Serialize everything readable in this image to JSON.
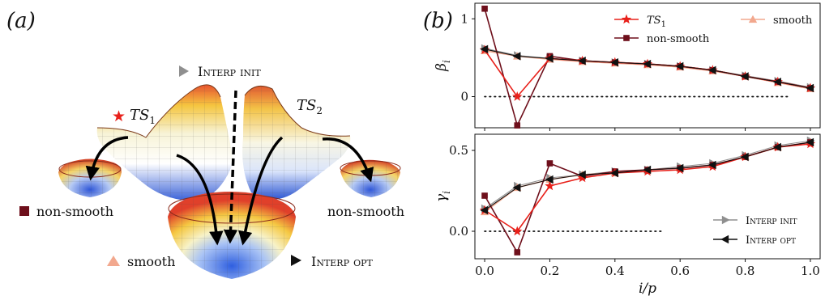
{
  "panel_a": {
    "label": "(a)",
    "ts1_label": "TS",
    "ts1_sub": "1",
    "ts2_label": "TS",
    "ts2_sub": "2",
    "interp_init_label": "Interp init",
    "interp_opt_label": "Interp opt",
    "non_smooth_left_label": "non-smooth",
    "non_smooth_right_label": "non-smooth",
    "smooth_label": "smooth"
  },
  "panel_b": {
    "label": "(b)"
  },
  "colors": {
    "ts1": "#e8201a",
    "non_smooth": "#6e0f1b",
    "smooth": "#f2a88e",
    "interp_init": "#8f8f8f",
    "interp_opt": "#111111"
  },
  "chart_data": [
    {
      "type": "line",
      "ylabel": "β_i",
      "xlabel": "",
      "ylim": [
        -0.4,
        1.2
      ],
      "yticks": [
        "0",
        "1"
      ],
      "ytick_values": [
        0,
        1
      ],
      "xlim": [
        -0.03,
        1.03
      ],
      "legend": [
        "TS_1",
        "non-smooth",
        "smooth"
      ],
      "legend_placement": "top",
      "reference_line": 0,
      "x": [
        0.0,
        0.1,
        0.2,
        0.3,
        0.4,
        0.5,
        0.6,
        0.7,
        0.8,
        0.9,
        1.0
      ],
      "series": [
        {
          "name": "TS_1",
          "color": "#e8201a",
          "marker": "star",
          "values": [
            0.6,
            0.0,
            0.49,
            0.46,
            0.44,
            0.42,
            0.39,
            0.34,
            0.26,
            0.19,
            0.11
          ]
        },
        {
          "name": "non-smooth",
          "color": "#6e0f1b",
          "marker": "square",
          "values": [
            1.13,
            -0.37,
            0.52,
            0.46,
            0.44,
            0.42,
            0.39,
            0.34,
            0.26,
            0.19,
            0.11
          ]
        },
        {
          "name": "smooth",
          "color": "#f2a88e",
          "marker": "triangle-up",
          "values": [
            0.59,
            0.52,
            0.48,
            0.45,
            0.43,
            0.41,
            0.38,
            0.33,
            0.26,
            0.18,
            0.1
          ]
        },
        {
          "name": "Interp init",
          "color": "#8f8f8f",
          "marker": "triangle-right",
          "values": [
            0.62,
            0.53,
            0.49,
            0.46,
            0.44,
            0.42,
            0.39,
            0.34,
            0.27,
            0.2,
            0.12
          ]
        },
        {
          "name": "Interp opt",
          "color": "#111111",
          "marker": "triangle-left",
          "values": [
            0.61,
            0.52,
            0.49,
            0.46,
            0.44,
            0.42,
            0.39,
            0.34,
            0.26,
            0.19,
            0.11
          ]
        }
      ]
    },
    {
      "type": "line",
      "ylabel": "γ_i",
      "xlabel": "i/p",
      "ylim": [
        -0.17,
        0.6
      ],
      "yticks": [
        "0.0",
        "0.5"
      ],
      "ytick_values": [
        0.0,
        0.5
      ],
      "xlim": [
        -0.03,
        1.03
      ],
      "xticks": [
        "0.0",
        "0.2",
        "0.4",
        "0.6",
        "0.8",
        "1.0"
      ],
      "xtick_values": [
        0.0,
        0.2,
        0.4,
        0.6,
        0.8,
        1.0
      ],
      "legend": [
        "Interp init",
        "Interp opt"
      ],
      "legend_placement": "bottom-right",
      "reference_line": 0,
      "x": [
        0.0,
        0.1,
        0.2,
        0.3,
        0.4,
        0.5,
        0.6,
        0.7,
        0.8,
        0.9,
        1.0
      ],
      "series": [
        {
          "name": "TS_1",
          "color": "#e8201a",
          "marker": "star",
          "values": [
            0.13,
            0.0,
            0.28,
            0.33,
            0.36,
            0.37,
            0.38,
            0.4,
            0.46,
            0.52,
            0.54
          ]
        },
        {
          "name": "non-smooth",
          "color": "#6e0f1b",
          "marker": "square",
          "values": [
            0.22,
            -0.13,
            0.42,
            0.34,
            0.37,
            0.38,
            0.39,
            0.41,
            0.46,
            0.52,
            0.55
          ]
        },
        {
          "name": "smooth",
          "color": "#f2a88e",
          "marker": "triangle-up",
          "values": [
            0.12,
            0.27,
            0.32,
            0.35,
            0.36,
            0.38,
            0.39,
            0.41,
            0.46,
            0.52,
            0.55
          ]
        },
        {
          "name": "Interp init",
          "color": "#8f8f8f",
          "marker": "triangle-right",
          "values": [
            0.14,
            0.28,
            0.33,
            0.35,
            0.37,
            0.38,
            0.4,
            0.42,
            0.47,
            0.53,
            0.56
          ]
        },
        {
          "name": "Interp opt",
          "color": "#111111",
          "marker": "triangle-left",
          "values": [
            0.13,
            0.27,
            0.32,
            0.35,
            0.36,
            0.38,
            0.39,
            0.41,
            0.46,
            0.52,
            0.55
          ]
        }
      ]
    }
  ]
}
